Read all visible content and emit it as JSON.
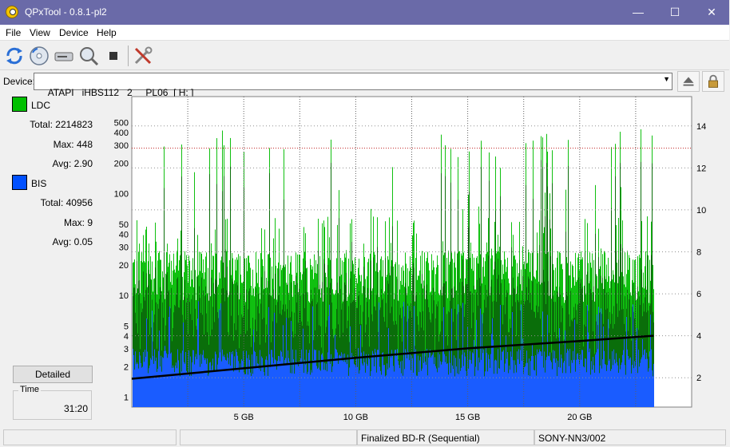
{
  "window": {
    "title": "QPxTool - 0.8.1-pl2",
    "min": "—",
    "max": "☐",
    "close": "✕"
  },
  "menu": [
    "File",
    "View",
    "Device",
    "Help"
  ],
  "toolbar": {
    "icons": [
      "refresh-icon",
      "disc-info-icon",
      "drive-icon",
      "scan-icon",
      "stop-icon",
      "settings-tools-icon"
    ]
  },
  "device": {
    "label": "Device:",
    "value": "ATAPI   iHBS112   2     PL06  [ H: ]"
  },
  "legend": {
    "ldc": {
      "name": "LDC",
      "color": "#00c000",
      "total": "Total: 2214823",
      "max": "Max: 448",
      "avg": "Avg: 2.90"
    },
    "bis": {
      "name": "BIS",
      "color": "#0050ff",
      "total": "Total: 40956",
      "max": "Max: 9",
      "avg": "Avg: 0.05"
    }
  },
  "detailed_label": "Detailed",
  "time": {
    "label": "Time",
    "value": "31:20"
  },
  "status": {
    "cell3": "Finalized BD-R (Sequential)",
    "cell4": "SONY-NN3/002"
  },
  "chart_data": {
    "type": "bar",
    "x_ticks": [
      "5 GB",
      "10 GB",
      "15 GB",
      "20 GB"
    ],
    "x_tick_values": [
      5,
      10,
      15,
      20
    ],
    "xlim": [
      0,
      25
    ],
    "data_end_gb": 23.3,
    "y_left_scale": "log",
    "y_left_ticks": [
      "1",
      "2",
      "3",
      "4",
      "5",
      "10",
      "20",
      "30",
      "40",
      "50",
      "100",
      "200",
      "300",
      "400",
      "500"
    ],
    "y_left_tick_values": [
      1,
      2,
      3,
      4,
      5,
      10,
      20,
      30,
      40,
      50,
      100,
      200,
      300,
      400,
      500
    ],
    "y_right_ticks": [
      "2",
      "4",
      "6",
      "8",
      "10",
      "12",
      "14"
    ],
    "y_right_tick_values": [
      2,
      4,
      6,
      8,
      10,
      12,
      14
    ],
    "threshold_left": 280,
    "speed_curve": [
      [
        0,
        1.95
      ],
      [
        5,
        2.45
      ],
      [
        10,
        2.95
      ],
      [
        15,
        3.4
      ],
      [
        20,
        3.75
      ],
      [
        23.3,
        4.0
      ]
    ],
    "series": [
      {
        "name": "LDC",
        "color": "#00c000",
        "typical": 12,
        "max": 448
      },
      {
        "name": "BIS",
        "color": "#0050ff",
        "typical": 2,
        "max": 9
      }
    ],
    "grid": true
  }
}
